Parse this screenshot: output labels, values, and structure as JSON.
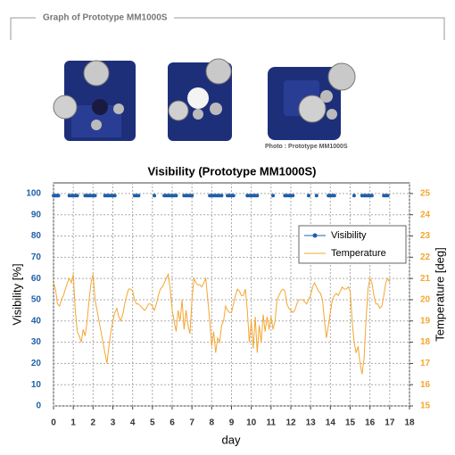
{
  "header": {
    "title": "Graph of Prototype MM1000S"
  },
  "photo_caption": "Photo : Prototype MM1000S",
  "chart_data": {
    "type": "line",
    "title": "Visibility (Prototype MM1000S)",
    "x_label": "day",
    "y_label": "Visibility [%]",
    "y2_label": "Temperature [deg]",
    "xlim": [
      0,
      18
    ],
    "xticks": [
      0,
      1,
      2,
      3,
      4,
      5,
      6,
      7,
      8,
      9,
      10,
      11,
      12,
      13,
      14,
      15,
      16,
      17,
      18
    ],
    "ylim": [
      0,
      105
    ],
    "yticks": [
      0,
      10,
      20,
      30,
      40,
      50,
      60,
      70,
      80,
      90,
      100
    ],
    "y2lim": [
      15,
      25.5
    ],
    "y2ticks": [
      15,
      16,
      17,
      18,
      19,
      20,
      21,
      22,
      23,
      24,
      25
    ],
    "grid": true,
    "legend": "upper right",
    "series": [
      {
        "name": "Visibility",
        "color": "#1f5fa8",
        "axis": "y",
        "markers": true,
        "x": [
          0.0,
          0.05,
          0.1,
          0.15,
          0.2,
          0.25,
          0.8,
          0.9,
          1.0,
          1.1,
          1.2,
          1.6,
          1.7,
          1.8,
          1.9,
          2.0,
          2.1,
          2.6,
          2.7,
          2.8,
          2.9,
          3.0,
          3.1,
          4.1,
          4.2,
          4.3,
          5.1,
          5.6,
          5.7,
          5.8,
          5.9,
          6.0,
          6.1,
          6.2,
          6.6,
          6.7,
          6.8,
          6.9,
          7.0,
          7.9,
          8.0,
          8.1,
          8.2,
          8.3,
          8.4,
          8.5,
          8.8,
          8.9,
          9.0,
          9.1,
          9.8,
          9.9,
          10.0,
          10.1,
          10.2,
          10.3,
          11.1,
          11.7,
          11.8,
          11.9,
          12.0,
          12.1,
          12.9,
          13.3,
          13.9,
          14.0,
          14.1,
          14.2,
          15.2,
          15.6,
          15.7,
          15.8,
          15.9,
          16.0,
          16.1,
          16.7,
          16.8,
          16.9
        ],
        "values": [
          99,
          99,
          99,
          99,
          99,
          99,
          99,
          99,
          99,
          99,
          99,
          99,
          99,
          99,
          99,
          99,
          99,
          99,
          99,
          99,
          99,
          99,
          99,
          99,
          99,
          99,
          99,
          99,
          99,
          99,
          99,
          99,
          99,
          99,
          99,
          99,
          99,
          99,
          99,
          99,
          99,
          99,
          99,
          99,
          99,
          99,
          99,
          99,
          99,
          99,
          99,
          99,
          99,
          99,
          99,
          99,
          99,
          99,
          99,
          99,
          99,
          99,
          99,
          99,
          99,
          99,
          99,
          99,
          99,
          99,
          99,
          99,
          99,
          99,
          99,
          99,
          99,
          99
        ]
      },
      {
        "name": "Temperature",
        "color": "#f5a630",
        "axis": "y2",
        "markers": false,
        "x": [
          0.0,
          0.1,
          0.2,
          0.3,
          0.4,
          0.5,
          0.6,
          0.7,
          0.8,
          0.9,
          1.0,
          1.1,
          1.2,
          1.3,
          1.4,
          1.5,
          1.6,
          1.7,
          1.8,
          1.9,
          2.0,
          2.1,
          2.2,
          2.3,
          2.4,
          2.5,
          2.6,
          2.7,
          2.8,
          2.9,
          3.0,
          3.1,
          3.2,
          3.3,
          3.4,
          3.5,
          3.6,
          3.7,
          3.8,
          3.9,
          4.0,
          4.1,
          4.2,
          4.3,
          4.4,
          4.5,
          4.6,
          4.7,
          4.8,
          4.9,
          5.0,
          5.1,
          5.2,
          5.3,
          5.4,
          5.5,
          5.6,
          5.7,
          5.8,
          5.9,
          6.0,
          6.1,
          6.2,
          6.3,
          6.4,
          6.5,
          6.6,
          6.7,
          6.8,
          6.9,
          7.0,
          7.1,
          7.2,
          7.3,
          7.4,
          7.5,
          7.6,
          7.7,
          7.8,
          7.9,
          8.0,
          8.1,
          8.2,
          8.3,
          8.4,
          8.5,
          8.6,
          8.7,
          8.8,
          8.9,
          9.0,
          9.1,
          9.2,
          9.3,
          9.4,
          9.5,
          9.6,
          9.7,
          9.8,
          9.9,
          10.0,
          10.1,
          10.2,
          10.3,
          10.4,
          10.5,
          10.6,
          10.7,
          10.8,
          10.9,
          11.0,
          11.1,
          11.2,
          11.3,
          11.4,
          11.5,
          11.6,
          11.7,
          11.8,
          11.9,
          12.0,
          12.1,
          12.2,
          12.3,
          12.4,
          12.5,
          12.6,
          12.7,
          12.8,
          12.9,
          13.0,
          13.1,
          13.2,
          13.3,
          13.4,
          13.5,
          13.6,
          13.7,
          13.8,
          13.9,
          14.0,
          14.1,
          14.2,
          14.3,
          14.4,
          14.5,
          14.6,
          14.7,
          14.8,
          14.9,
          15.0,
          15.1,
          15.2,
          15.3,
          15.4,
          15.5,
          15.6,
          15.7,
          15.8,
          15.9,
          16.0,
          16.1,
          16.2,
          16.3,
          16.4,
          16.5,
          16.6,
          16.7,
          16.8,
          16.9,
          17.0
        ],
        "values": [
          20.8,
          20.5,
          19.8,
          19.7,
          20,
          20.2,
          20.5,
          20.8,
          21,
          20.8,
          21.2,
          19.5,
          18.5,
          18.3,
          18,
          18.6,
          18.3,
          19,
          20,
          20.8,
          21.2,
          20,
          19.5,
          19,
          18.5,
          18,
          17.5,
          17,
          17.8,
          18.5,
          19,
          19.4,
          19.6,
          19.2,
          19,
          19.3,
          19.8,
          20.2,
          20.5,
          20.5,
          20.4,
          20,
          19.8,
          19.8,
          19.7,
          19.6,
          19.5,
          19.6,
          19.8,
          19.8,
          19.7,
          19.5,
          19.8,
          20.2,
          20.5,
          20.6,
          20.8,
          21,
          21.2,
          20.5,
          19.5,
          19,
          18.5,
          19.5,
          19,
          20,
          18.6,
          19.5,
          18.8,
          18.4,
          20,
          21,
          20.8,
          20.7,
          20.7,
          20.6,
          20.8,
          21,
          20,
          19,
          17.8,
          18.5,
          17.5,
          18.2,
          18,
          18.8,
          19,
          19.7,
          19.5,
          19.4,
          19.4,
          19.8,
          20.2,
          20.5,
          20.4,
          20.2,
          20.2,
          20.5,
          19.5,
          18,
          19,
          17.7,
          19.2,
          17.5,
          18.8,
          18,
          19.3,
          18.5,
          19.2,
          18.6,
          19.2,
          18.6,
          19,
          20,
          20.2,
          20.4,
          20.5,
          20.4,
          19.8,
          19.6,
          19.5,
          19.4,
          19.5,
          19.8,
          20,
          20,
          20,
          19.9,
          19.8,
          20,
          20.2,
          20.6,
          20.8,
          20.6,
          20.4,
          20.3,
          20,
          19,
          18.2,
          18.8,
          19.4,
          20,
          20.2,
          20.3,
          20.2,
          20.4,
          20.6,
          20.5,
          20.5,
          20.6,
          20.4,
          19,
          18,
          17.5,
          17.8,
          17,
          16.5,
          17.2,
          19,
          20.5,
          21,
          20.8,
          20.2,
          19.8,
          19.8,
          19.6,
          19.7,
          20.2,
          20.8,
          21,
          20.8
        ]
      }
    ]
  }
}
